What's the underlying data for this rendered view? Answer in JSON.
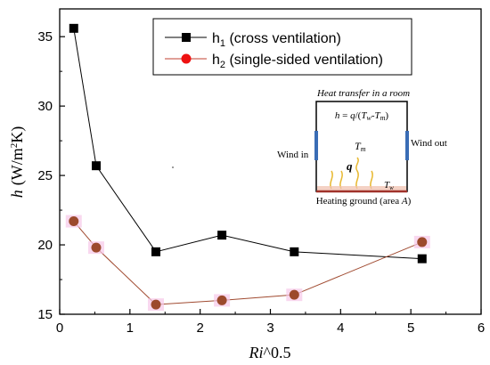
{
  "chart_data": {
    "type": "line",
    "xlabel": {
      "main": "Ri",
      "suffix": "^0.5"
    },
    "ylabel": {
      "main": "h",
      "unit_prefix": "(W/m",
      "unit_sup": "2",
      "unit_suffix": "K)"
    },
    "xlim": [
      0,
      6
    ],
    "ylim": [
      15,
      37
    ],
    "x_ticks": [
      "0",
      "1",
      "2",
      "3",
      "4",
      "5",
      "6"
    ],
    "y_ticks": [
      "15",
      "20",
      "25",
      "30",
      "35"
    ],
    "grid": false,
    "legend_position": "top-right",
    "series": [
      {
        "name": "h1 (cross ventilation)",
        "legend": {
          "base": "h",
          "sub": "1",
          "rest": " (cross ventilation)"
        },
        "marker": "square",
        "color": "#000000",
        "x": [
          0.2,
          0.52,
          1.37,
          2.31,
          3.34,
          5.16
        ],
        "y": [
          35.6,
          25.7,
          19.5,
          20.7,
          19.5,
          19.0
        ]
      },
      {
        "name": "h2 (single-sided ventilation)",
        "legend": {
          "base": "h",
          "sub": "2",
          "rest": " (single-sided ventilation)"
        },
        "marker": "circle",
        "color": "#ee1111",
        "line_color": "#a04a30",
        "x": [
          0.2,
          0.52,
          1.37,
          2.31,
          3.34,
          5.16
        ],
        "y": [
          21.7,
          19.8,
          15.7,
          16.0,
          16.4,
          20.2
        ]
      }
    ]
  },
  "inset": {
    "title": "Heat transfer in a room",
    "equation": {
      "h": "h",
      "eq": " = ",
      "q": "q",
      "slash": "/(",
      "tw": "T",
      "tw_sub": "w",
      "minus": "-",
      "tm": "T",
      "tm_sub": "m",
      "close": ")"
    },
    "wind_in": "Wind in",
    "wind_out": "Wind out",
    "room_temp": {
      "base": "T",
      "sub": "m"
    },
    "heat_flux": "q",
    "wall_temp": {
      "base": "T",
      "sub": "w"
    },
    "ground": {
      "prefix": "Heating ground (area ",
      "var": "A",
      "suffix": ")"
    },
    "colors": {
      "wall": "#000000",
      "vent": "#3a6db5",
      "heat": "#e8b830",
      "ground": "#a0322a"
    }
  }
}
